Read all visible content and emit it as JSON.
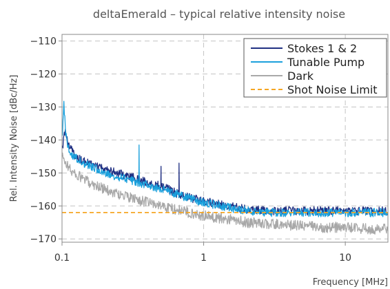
{
  "chart_data": {
    "type": "line",
    "title": "deltaEmerald – typical relative intensity noise",
    "xlabel": "Frequency [MHz]",
    "ylabel": "Rel. Intensity Noise [dBc/Hz]",
    "xscale": "log",
    "xlim": [
      0.1,
      20
    ],
    "ylim": [
      -171,
      -108
    ],
    "xticks": [
      {
        "value": 0.1,
        "label": "0.1"
      },
      {
        "value": 1,
        "label": "1"
      },
      {
        "value": 10,
        "label": "10"
      }
    ],
    "yticks": [
      {
        "value": -110,
        "label": "−110"
      },
      {
        "value": -120,
        "label": "−120"
      },
      {
        "value": -130,
        "label": "−130"
      },
      {
        "value": -140,
        "label": "−140"
      },
      {
        "value": -150,
        "label": "−150"
      },
      {
        "value": -160,
        "label": "−160"
      },
      {
        "value": -170,
        "label": "−170"
      }
    ],
    "grid": true,
    "legend_position": "top-right",
    "series": [
      {
        "name": "Stokes 1 & 2",
        "color": "#1f2f82",
        "style": "solid",
        "x": [
          0.1,
          0.105,
          0.11,
          0.12,
          0.13,
          0.15,
          0.2,
          0.3,
          0.35,
          0.4,
          0.5,
          0.6,
          0.7,
          1,
          1.5,
          2,
          3,
          5,
          7,
          10,
          15,
          20
        ],
        "y": [
          -143,
          -137,
          -141,
          -144,
          -145.5,
          -147,
          -149,
          -151,
          -152,
          -153,
          -154,
          -155.5,
          -157,
          -158.5,
          -160,
          -161,
          -161.5,
          -161.5,
          -161.5,
          -161.5,
          -161.5,
          -161.5
        ]
      },
      {
        "name": "Tunable Pump",
        "color": "#1aa0dc",
        "style": "solid",
        "x": [
          0.1,
          0.103,
          0.106,
          0.11,
          0.12,
          0.15,
          0.2,
          0.3,
          0.35,
          0.4,
          0.5,
          0.6,
          0.7,
          1,
          1.5,
          2,
          3,
          5,
          7,
          10,
          15,
          20
        ],
        "y": [
          -140,
          -129,
          -138,
          -142,
          -145,
          -147.5,
          -150,
          -152,
          -153,
          -153.5,
          -155,
          -156,
          -157,
          -159,
          -160.5,
          -161.5,
          -162,
          -162,
          -162,
          -162,
          -162,
          -162
        ]
      },
      {
        "name": "Dark",
        "color": "#a8a8a8",
        "style": "solid",
        "x": [
          0.1,
          0.11,
          0.12,
          0.15,
          0.2,
          0.3,
          0.5,
          0.7,
          1,
          1.5,
          2,
          3,
          5,
          7,
          10,
          15,
          20
        ],
        "y": [
          -145,
          -148,
          -150,
          -152.5,
          -155,
          -157.5,
          -160,
          -161.5,
          -163,
          -164,
          -165,
          -165.5,
          -166,
          -166.5,
          -166.5,
          -167,
          -167
        ]
      },
      {
        "name": "Shot Noise Limit",
        "color": "#f5a623",
        "style": "dashed",
        "x": [
          0.1,
          20
        ],
        "y": [
          -162,
          -162
        ]
      }
    ],
    "peaks": [
      {
        "series": "Tunable Pump",
        "x": 0.35,
        "y": -141.5
      },
      {
        "series": "Stokes 1 & 2",
        "x": 0.5,
        "y": -148
      },
      {
        "series": "Stokes 1 & 2",
        "x": 0.67,
        "y": -147
      }
    ]
  }
}
